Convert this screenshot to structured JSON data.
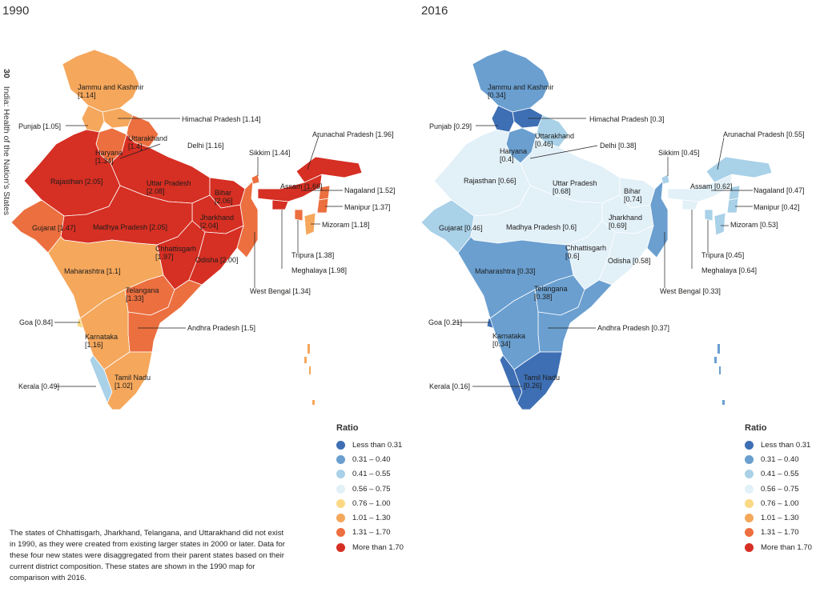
{
  "years": {
    "left": "1990",
    "right": "2016"
  },
  "side_text": {
    "page_number": "30",
    "title": "India: Health of the Nation's States"
  },
  "colors": {
    "less_than_0_31": "#3e6fb4",
    "r0_31_0_40": "#6a9fd0",
    "r0_41_0_55": "#a9d1e8",
    "r0_56_0_75": "#e2f0f8",
    "r0_76_1_00": "#fbd884",
    "r1_01_1_30": "#f5a75c",
    "r1_31_1_70": "#ec6f3f",
    "more_than_1_70": "#d62f23"
  },
  "legend": {
    "title": "Ratio",
    "items": [
      "Less than 0.31",
      "0.31 – 0.40",
      "0.41 – 0.55",
      "0.56 – 0.75",
      "0.76 – 1.00",
      "1.01 – 1.30",
      "1.31 – 1.70",
      "More than 1.70"
    ]
  },
  "map_1990": {
    "labels": {
      "jk": "Jammu and Kashmir",
      "jk_v": "[1.14]",
      "punjab": "Punjab [1.05]",
      "hp": "Himachal Pradesh [1.14]",
      "uk": "Uttarakhand",
      "uk_v": "[1.4]",
      "haryana": "Haryana",
      "haryana_v": "[1.34]",
      "delhi": "Delhi [1.16]",
      "rajasthan": "Rajasthan [2.05]",
      "up": "Uttar Pradesh",
      "up_v": "[2.08]",
      "bihar": "Bihar",
      "bihar_v": "[2.06]",
      "jharkhand": "Jharkhand",
      "jharkhand_v": "[2.04]",
      "mp": "Madhya Pradesh [2.05]",
      "gujarat": "Gujarat [1.47]",
      "chhattisgarh": "Chhattisgarh",
      "chhattisgarh_v": "[1.97]",
      "odisha": "Odisha [2.00]",
      "maharashtra": "Maharashtra [1.1]",
      "telangana": "Telangana",
      "telangana_v": "[1.33]",
      "goa": "Goa [0.84]",
      "karnataka": "Karnataka",
      "karnataka_v": "[1.16]",
      "ap": "Andhra Pradesh [1.5]",
      "tn": "Tamil Nadu",
      "tn_v": "[1.02]",
      "kerala": "Kerala [0.49]",
      "sikkim": "Sikkim [1.44]",
      "arunachal": "Arunachal Pradesh [1.96]",
      "assam": "Assam [1.66]",
      "nagaland": "Nagaland [1.52]",
      "manipur": "Manipur [1.37]",
      "mizoram": "Mizoram [1.18]",
      "tripura": "Tripura [1.38]",
      "meghalaya": "Meghalaya [1.98]",
      "wb": "West Bengal [1.34]"
    }
  },
  "map_2016": {
    "labels": {
      "jk": "Jammu and Kashmir",
      "jk_v": "[0.34]",
      "punjab": "Punjab [0.29]",
      "hp": "Himachal Pradesh [0.3]",
      "uk": "Uttarakhand",
      "uk_v": "[0.46]",
      "haryana": "Haryana",
      "haryana_v": "[0.4]",
      "delhi": "Delhi [0.38]",
      "rajasthan": "Rajasthan [0.66]",
      "up": "Uttar Pradesh",
      "up_v": "[0.68]",
      "bihar": "Bihar",
      "bihar_v": "[0.74]",
      "jharkhand": "Jharkhand",
      "jharkhand_v": "[0.69]",
      "mp": "Madhya Pradesh [0.6]",
      "gujarat": "Gujarat [0.46]",
      "chhattisgarh": "Chhattisgarh",
      "chhattisgarh_v": "[0.6]",
      "odisha": "Odisha [0.58]",
      "maharashtra": "Maharashtra [0.33]",
      "telangana": "Telangana",
      "telangana_v": "[0.38]",
      "goa": "Goa [0.21]",
      "karnataka": "Karnataka",
      "karnataka_v": "[0.34]",
      "ap": "Andhra Pradesh [0.37]",
      "tn": "Tamil Nadu",
      "tn_v": "[0.26]",
      "kerala": "Kerala [0.16]",
      "sikkim": "Sikkim [0.45]",
      "arunachal": "Arunachal Pradesh [0.55]",
      "assam": "Assam [0.62]",
      "nagaland": "Nagaland [0.47]",
      "manipur": "Manipur [0.42]",
      "mizoram": "Mizoram [0.53]",
      "tripura": "Tripura [0.45]",
      "meghalaya": "Meghalaya [0.64]",
      "wb": "West Bengal [0.33]"
    }
  },
  "footnote": "The states of Chhattisgarh, Jharkhand, Telangana, and Uttarakhand did not exist in 1990, as they were created from existing larger states in 2000 or later. Data for these four new states were disaggregated from their parent states based on their current district composition. These states are shown in the 1990 map for comparison with 2016."
}
